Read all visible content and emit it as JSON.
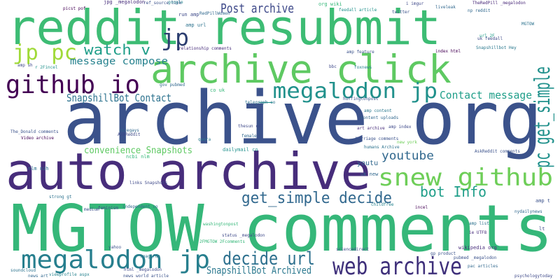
{
  "words": [
    {
      "text": "archive org",
      "color": "#3b528b"
    },
    {
      "text": "MGTOW comments",
      "color": "#35b779"
    },
    {
      "text": "auto archive",
      "color": "#472d7b"
    },
    {
      "text": "reddit resubmit",
      "color": "#3dbc74"
    },
    {
      "text": "archive click",
      "color": "#5ec962"
    },
    {
      "text": "github io",
      "color": "#440154"
    },
    {
      "text": "jp pc",
      "color": "#a0da39"
    },
    {
      "text": "jp",
      "color": "#2c3e70"
    },
    {
      "text": "watch v",
      "color": "#1f9e89"
    },
    {
      "text": "message compose",
      "color": "#26828e"
    },
    {
      "text": "SnapshillBot Contact",
      "color": "#2c728e"
    },
    {
      "text": "Post archive",
      "color": "#3e4989"
    },
    {
      "text": "_megalodon jp",
      "color": "#21918c"
    },
    {
      "text": "Contact message",
      "color": "#1f9e89"
    },
    {
      "text": "pc get_simple",
      "color": "#21918c"
    },
    {
      "text": "snew github",
      "color": "#6ece58"
    },
    {
      "text": "youtube",
      "color": "#31688e"
    },
    {
      "text": "bot Info",
      "color": "#1f9e89"
    },
    {
      "text": "get_simple decide",
      "color": "#31688e"
    },
    {
      "text": "convenience Snapshots",
      "color": "#5ec962"
    },
    {
      "text": "megalodon jp",
      "color": "#277f8e"
    },
    {
      "text": "decide url",
      "color": "#2d708e"
    },
    {
      "text": "web archive",
      "color": "#3e2f7a"
    },
    {
      "text": "SnapshillBot Archived",
      "color": "#2a788e"
    },
    {
      "text": "youtu",
      "color": "#31688e"
    },
    {
      "text": "run amp",
      "color": "#3e4989"
    },
    {
      "text": "RedPillWomen",
      "color": "#31688e"
    },
    {
      "text": "amp url",
      "color": "#2c728e"
    },
    {
      "text": "ref_source link",
      "color": "#3b528b"
    },
    {
      "text": "jpg _megalodon",
      "color": "#472d7b"
    },
    {
      "text": "picst pof",
      "color": "#440154"
    },
    {
      "text": "google",
      "color": "#26828e"
    },
    {
      "text": "twitter",
      "color": "#3b528b"
    },
    {
      "text": "liveleak",
      "color": "#31688e"
    },
    {
      "text": "i imgur",
      "color": "#3e4989"
    },
    {
      "text": "org wiki",
      "color": "#35b779"
    },
    {
      "text": "feedall article",
      "color": "#21918c"
    },
    {
      "text": "TheRedPill _megalodon",
      "color": "#482878"
    },
    {
      "text": "np reddit",
      "color": "#31688e"
    },
    {
      "text": "MGTOW",
      "color": "#2c728e"
    },
    {
      "text": "uk feedall",
      "color": "#3e4989"
    },
    {
      "text": "url 2F",
      "color": "#1f9e89"
    },
    {
      "text": "Snapshillbot Hey",
      "color": "#2a788e"
    },
    {
      "text": "amp feature",
      "color": "#3b528b"
    },
    {
      "text": "index html",
      "color": "#440154"
    },
    {
      "text": "bbc",
      "color": "#3e4989"
    },
    {
      "text": "foxnews",
      "color": "#26828e"
    },
    {
      "text": "gov pubmed",
      "color": "#31688e"
    },
    {
      "text": "co uk",
      "color": "#35b779"
    },
    {
      "text": "telegraph co",
      "color": "#2c728e"
    },
    {
      "text": "huffingtonpost",
      "color": "#3b528b"
    },
    {
      "text": "amp content",
      "color": "#2a788e"
    },
    {
      "text": "content uploads",
      "color": "#31688e"
    },
    {
      "text": "art archive",
      "color": "#472d7b"
    },
    {
      "text": "amp index",
      "color": "#3e4989"
    },
    {
      "text": "humans Archive",
      "color": "#2c728e"
    },
    {
      "text": "uk new",
      "color": "#31688e"
    },
    {
      "text": "new york",
      "color": "#6ece58"
    },
    {
      "text": "AskReddit comments",
      "color": "#3b528b"
    },
    {
      "text": "amp sh",
      "color": "#3e4989"
    },
    {
      "text": "r 2Fincel",
      "color": "#21918c"
    },
    {
      "text": "nicegays",
      "color": "#31688e"
    },
    {
      "text": "AskReddit",
      "color": "#3e4989"
    },
    {
      "text": "The_Donald comments",
      "color": "#3b528b"
    },
    {
      "text": "Video archive",
      "color": "#440154"
    },
    {
      "text": "nlm nih",
      "color": "#2c728e"
    },
    {
      "text": "ncbi nlm",
      "color": "#35b779"
    },
    {
      "text": "links Snapshots",
      "color": "#3e4989"
    },
    {
      "text": "independent co",
      "color": "#31688e"
    },
    {
      "text": "yahoo",
      "color": "#3b528b"
    },
    {
      "text": "9gag fun",
      "color": "#2a788e"
    },
    {
      "text": "html _megalodon",
      "color": "#3e4989"
    },
    {
      "text": "news world article",
      "color": "#3b528b"
    },
    {
      "text": "viewprofile aspx",
      "color": "#26828e"
    },
    {
      "text": "news art",
      "color": "#31688e"
    },
    {
      "text": "soundcloud",
      "color": "#2c728e"
    },
    {
      "text": "sciencedirect",
      "color": "#3e4989"
    },
    {
      "text": "wikipedia org",
      "color": "#472d7b"
    },
    {
      "text": "pubmed _megalodon",
      "color": "#3b528b"
    },
    {
      "text": "psychologytoday",
      "color": "#3e4989"
    },
    {
      "text": "pac articles",
      "color": "#31688e"
    },
    {
      "text": "gp product",
      "color": "#3b528b"
    },
    {
      "text": "washingtonpost",
      "color": "#35b779"
    },
    {
      "text": "strong gt",
      "color": "#2c728e"
    },
    {
      "text": "feminism",
      "color": "#3e4989"
    },
    {
      "text": "incel",
      "color": "#440154"
    },
    {
      "text": "childfree",
      "color": "#26828e"
    },
    {
      "text": "Marriage comments",
      "color": "#3b528b"
    },
    {
      "text": "relationship comments",
      "color": "#472d7b"
    },
    {
      "text": "thesun co",
      "color": "#3e4989"
    },
    {
      "text": "female",
      "color": "#31688e"
    },
    {
      "text": "dailymail co",
      "color": "#21918c"
    },
    {
      "text": "quora",
      "color": "#2a788e"
    },
    {
      "text": "medium",
      "color": "#3b528b"
    },
    {
      "text": "status _megalodon",
      "color": "#3e4989"
    },
    {
      "text": "2FMGTOW 2Fcomments",
      "color": "#35b779"
    },
    {
      "text": "ie UTF8",
      "color": "#472d7b"
    },
    {
      "text": "amp list",
      "color": "#2c728e"
    },
    {
      "text": "amp t",
      "color": "#3b528b"
    },
    {
      "text": "lt",
      "color": "#3e4989"
    },
    {
      "text": "nydailynews",
      "color": "#31688e"
    }
  ]
}
